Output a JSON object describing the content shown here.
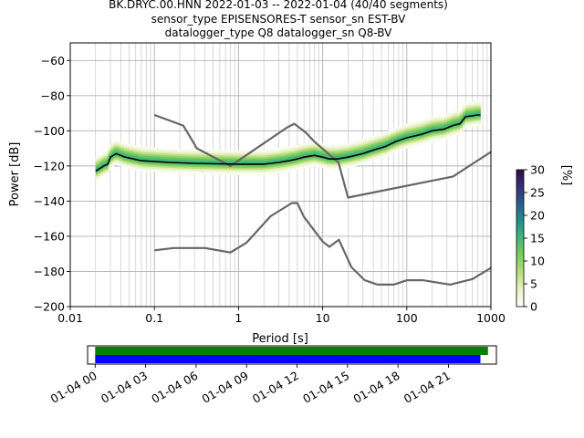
{
  "title": {
    "line1": "BK.DRYC.00.HNN   2022-01-03 -- 2022-01-04  (40/40 segments)",
    "line2": "sensor_type EPISENSORES-T sensor_sn EST-BV",
    "line3": "datalogger_type Q8 datalogger_sn Q8-BV"
  },
  "chart_data": {
    "type": "heatmap",
    "xlabel": "Period [s]",
    "ylabel": "Power [dB]",
    "xscale": "log",
    "xlim": [
      0.01,
      1000
    ],
    "ylim": [
      -200,
      -50
    ],
    "xticks": [
      {
        "value": 0.01,
        "label": "0.01"
      },
      {
        "value": 0.1,
        "label": "0.1"
      },
      {
        "value": 1,
        "label": "1"
      },
      {
        "value": 10,
        "label": "10"
      },
      {
        "value": 100,
        "label": "100"
      },
      {
        "value": 1000,
        "label": "1000"
      }
    ],
    "yticks": [
      {
        "value": -60,
        "label": "−60"
      },
      {
        "value": -80,
        "label": "−80"
      },
      {
        "value": -100,
        "label": "−100"
      },
      {
        "value": -120,
        "label": "−120"
      },
      {
        "value": -140,
        "label": "−140"
      },
      {
        "value": -160,
        "label": "−160"
      },
      {
        "value": -180,
        "label": "−180"
      },
      {
        "value": -200,
        "label": "−200"
      }
    ],
    "grid": true,
    "colorbar": {
      "label": "[%]",
      "range": [
        0,
        30
      ],
      "ticks": [
        {
          "value": 0,
          "label": "0"
        },
        {
          "value": 5,
          "label": "5"
        },
        {
          "value": 10,
          "label": "10"
        },
        {
          "value": 15,
          "label": "15"
        },
        {
          "value": 20,
          "label": "20"
        },
        {
          "value": 25,
          "label": "25"
        },
        {
          "value": 30,
          "label": "30"
        }
      ],
      "colors": [
        "#ffffff",
        "#e9f2c8",
        "#b8de7c",
        "#7ccf55",
        "#43b77a",
        "#20918c",
        "#2b5e8e",
        "#3a2e7a",
        "#2b0f45"
      ]
    },
    "series": [
      {
        "role": "high-noise-model",
        "color": "#666666",
        "points": [
          [
            0.1,
            -91
          ],
          [
            0.22,
            -97
          ],
          [
            0.32,
            -110
          ],
          [
            0.8,
            -120
          ],
          [
            3.8,
            -98
          ],
          [
            4.6,
            -96
          ],
          [
            6.3,
            -101
          ],
          [
            7.9,
            -106
          ],
          [
            15.4,
            -118
          ],
          [
            20,
            -138
          ],
          [
            354.8,
            -126
          ],
          [
            1000,
            -112
          ]
        ]
      },
      {
        "role": "low-noise-model",
        "color": "#666666",
        "points": [
          [
            0.1,
            -168
          ],
          [
            0.17,
            -166.7
          ],
          [
            0.4,
            -166.7
          ],
          [
            0.8,
            -169.2
          ],
          [
            1.24,
            -163.7
          ],
          [
            2.4,
            -148.6
          ],
          [
            4.3,
            -141.1
          ],
          [
            5,
            -141.1
          ],
          [
            6,
            -149
          ],
          [
            10,
            -163
          ],
          [
            12,
            -166
          ],
          [
            15.6,
            -162
          ],
          [
            21.9,
            -177.5
          ],
          [
            31.6,
            -185
          ],
          [
            45,
            -187.5
          ],
          [
            70,
            -187.5
          ],
          [
            101,
            -185
          ],
          [
            154,
            -185
          ],
          [
            328,
            -187.5
          ],
          [
            600,
            -184.4
          ],
          [
            1000,
            -178
          ]
        ]
      },
      {
        "role": "mode",
        "color": "#000000",
        "points": [
          [
            0.02,
            -123
          ],
          [
            0.025,
            -120
          ],
          [
            0.028,
            -119
          ],
          [
            0.03,
            -115
          ],
          [
            0.035,
            -113
          ],
          [
            0.045,
            -115
          ],
          [
            0.07,
            -117
          ],
          [
            0.15,
            -118
          ],
          [
            0.3,
            -118.5
          ],
          [
            1,
            -119
          ],
          [
            2,
            -119
          ],
          [
            3,
            -118
          ],
          [
            4,
            -117
          ],
          [
            5,
            -116
          ],
          [
            6,
            -115
          ],
          [
            8,
            -114
          ],
          [
            10,
            -115
          ],
          [
            12,
            -116
          ],
          [
            15,
            -116
          ],
          [
            20,
            -115
          ],
          [
            30,
            -113
          ],
          [
            40,
            -111
          ],
          [
            55,
            -109
          ],
          [
            75,
            -106
          ],
          [
            100,
            -104
          ],
          [
            150,
            -102
          ],
          [
            200,
            -100
          ],
          [
            280,
            -99
          ],
          [
            350,
            -97
          ],
          [
            430,
            -96
          ],
          [
            500,
            -92
          ],
          [
            700,
            -91
          ],
          [
            750,
            -91
          ]
        ]
      }
    ],
    "density": {
      "mode_percent": 15,
      "spread_db": 2.5,
      "high_band_percent": 3
    },
    "timeline": {
      "ticks": [
        "01-04 00",
        "01-04 03",
        "01-04 06",
        "01-04 09",
        "01-04 12",
        "01-04 15",
        "01-04 18",
        "01-04 21"
      ],
      "range_hours": [
        -0.45,
        23.85
      ],
      "bars": [
        {
          "color": "#008000",
          "start_hours": 0,
          "end_hours": 23.35
        },
        {
          "color": "#0000ff",
          "start_hours": 0,
          "end_hours": 22.9
        }
      ]
    }
  }
}
